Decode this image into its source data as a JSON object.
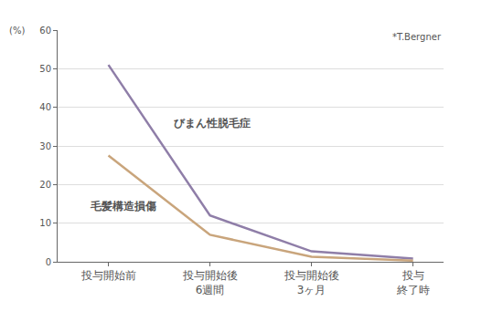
{
  "chart_data": {
    "type": "line",
    "y_label": "(%)",
    "note": "*T.Bergner",
    "categories": [
      "投与開始前",
      "投与開始後\n6週間",
      "投与開始後\n3ヶ月",
      "投与\n終了時"
    ],
    "series": [
      {
        "name": "びまん性脱毛症",
        "color": "#8f7ea8",
        "values": [
          51,
          12,
          2.7,
          0.8
        ]
      },
      {
        "name": "毛髪構造損傷",
        "color": "#c9a57c",
        "values": [
          27.5,
          7,
          1.3,
          0.3
        ]
      }
    ],
    "ylim": [
      0,
      60
    ],
    "yticks": [
      0,
      10,
      20,
      30,
      40,
      50,
      60
    ],
    "grid": true
  }
}
